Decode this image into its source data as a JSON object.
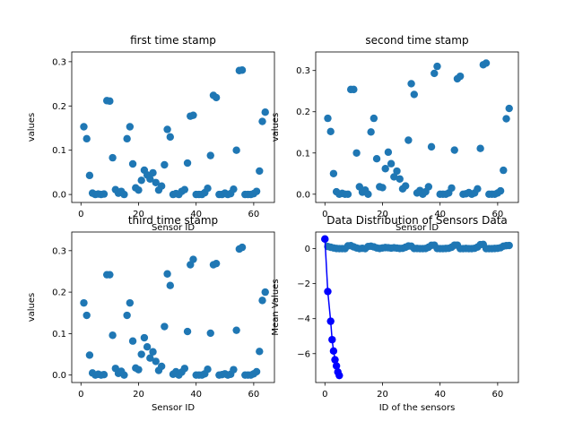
{
  "chart_data": [
    {
      "type": "scatter",
      "title": "first time stamp",
      "xlabel": "Sensor ID",
      "ylabel": "values",
      "xlim": [
        -3.2,
        67.2
      ],
      "ylim": [
        -0.018,
        0.322
      ],
      "xticks": [
        0,
        20,
        40,
        60
      ],
      "yticks": [
        0.0,
        0.1,
        0.2,
        0.3
      ],
      "grid": false,
      "color": "#1f77b4",
      "x": [
        1,
        2,
        3,
        4,
        5,
        6,
        7,
        8,
        9,
        10,
        11,
        12,
        13,
        14,
        15,
        16,
        17,
        18,
        19,
        20,
        21,
        22,
        23,
        24,
        25,
        26,
        27,
        28,
        29,
        30,
        31,
        32,
        33,
        34,
        35,
        36,
        37,
        38,
        39,
        40,
        41,
        42,
        43,
        44,
        45,
        46,
        47,
        48,
        49,
        50,
        51,
        52,
        53,
        54,
        55,
        56,
        57,
        58,
        59,
        60,
        61,
        62,
        63,
        64
      ],
      "y": [
        0.153,
        0.126,
        0.043,
        0.003,
        0.0,
        0.001,
        0.0,
        0.001,
        0.212,
        0.211,
        0.083,
        0.011,
        0.003,
        0.007,
        0.0,
        0.126,
        0.153,
        0.069,
        0.015,
        0.01,
        0.032,
        0.055,
        0.044,
        0.035,
        0.049,
        0.027,
        0.01,
        0.019,
        0.067,
        0.147,
        0.13,
        0.0,
        0.002,
        0.0,
        0.007,
        0.011,
        0.071,
        0.177,
        0.179,
        0.0,
        0.0,
        0.0,
        0.004,
        0.014,
        0.088,
        0.224,
        0.219,
        0.0,
        0.0,
        0.003,
        0.0,
        0.002,
        0.012,
        0.1,
        0.28,
        0.281,
        0.0,
        0.0,
        0.0,
        0.002,
        0.007,
        0.053,
        0.165,
        0.186
      ]
    },
    {
      "type": "scatter",
      "title": "second time stamp",
      "xlabel": "Sensor ID",
      "ylabel": "values",
      "xlim": [
        -3.2,
        67.2
      ],
      "ylim": [
        -0.02,
        0.345
      ],
      "xticks": [
        0,
        20,
        40,
        60
      ],
      "yticks": [
        0.0,
        0.1,
        0.2,
        0.3
      ],
      "grid": false,
      "color": "#1f77b4",
      "x": [
        1,
        2,
        3,
        4,
        5,
        6,
        7,
        8,
        9,
        10,
        11,
        12,
        13,
        14,
        15,
        16,
        17,
        18,
        19,
        20,
        21,
        22,
        23,
        24,
        25,
        26,
        27,
        28,
        29,
        30,
        31,
        32,
        33,
        34,
        35,
        36,
        37,
        38,
        39,
        40,
        41,
        42,
        43,
        44,
        45,
        46,
        47,
        48,
        49,
        50,
        51,
        52,
        53,
        54,
        55,
        56,
        57,
        58,
        59,
        60,
        61,
        62,
        63,
        64
      ],
      "y": [
        0.184,
        0.152,
        0.05,
        0.006,
        0.0,
        0.002,
        0.0,
        0.0,
        0.254,
        0.254,
        0.1,
        0.018,
        0.005,
        0.01,
        0.0,
        0.151,
        0.184,
        0.086,
        0.018,
        0.016,
        0.062,
        0.102,
        0.074,
        0.042,
        0.056,
        0.037,
        0.013,
        0.02,
        0.131,
        0.268,
        0.242,
        0.003,
        0.009,
        0.0,
        0.006,
        0.018,
        0.115,
        0.293,
        0.31,
        0.0,
        0.0,
        0.0,
        0.003,
        0.015,
        0.107,
        0.28,
        0.286,
        0.0,
        0.001,
        0.004,
        0.0,
        0.003,
        0.013,
        0.111,
        0.314,
        0.318,
        0.0,
        0.0,
        0.0,
        0.003,
        0.008,
        0.058,
        0.183,
        0.208
      ]
    },
    {
      "type": "scatter",
      "title": "third time stamp",
      "xlabel": "Sensor ID",
      "ylabel": "values",
      "xlim": [
        -3.2,
        67.2
      ],
      "ylim": [
        -0.018,
        0.345
      ],
      "xticks": [
        0,
        20,
        40,
        60
      ],
      "yticks": [
        0.0,
        0.1,
        0.2,
        0.3
      ],
      "grid": false,
      "color": "#1f77b4",
      "x": [
        1,
        2,
        3,
        4,
        5,
        6,
        7,
        8,
        9,
        10,
        11,
        12,
        13,
        14,
        15,
        16,
        17,
        18,
        19,
        20,
        21,
        22,
        23,
        24,
        25,
        26,
        27,
        28,
        29,
        30,
        31,
        32,
        33,
        34,
        35,
        36,
        37,
        38,
        39,
        40,
        41,
        42,
        43,
        44,
        45,
        46,
        47,
        48,
        49,
        50,
        51,
        52,
        53,
        54,
        55,
        56,
        57,
        58,
        59,
        60,
        61,
        62,
        63,
        64
      ],
      "y": [
        0.174,
        0.144,
        0.048,
        0.005,
        0.0,
        0.002,
        0.0,
        0.001,
        0.242,
        0.242,
        0.096,
        0.016,
        0.004,
        0.009,
        0.0,
        0.144,
        0.174,
        0.082,
        0.017,
        0.013,
        0.05,
        0.09,
        0.068,
        0.041,
        0.056,
        0.033,
        0.011,
        0.021,
        0.117,
        0.244,
        0.216,
        0.002,
        0.008,
        0.0,
        0.007,
        0.016,
        0.105,
        0.266,
        0.279,
        0.0,
        0.0,
        0.0,
        0.003,
        0.014,
        0.101,
        0.266,
        0.269,
        0.0,
        0.001,
        0.003,
        0.0,
        0.002,
        0.013,
        0.108,
        0.304,
        0.308,
        0.0,
        0.0,
        0.0,
        0.003,
        0.008,
        0.057,
        0.18,
        0.2
      ]
    },
    {
      "type": "line",
      "title": "Data Distribution of Sensors Data",
      "xlabel": "ID of the sensors",
      "ylabel": "Mean Values",
      "xlim": [
        -3.2,
        67.2
      ],
      "ylim": [
        -7.65,
        0.95
      ],
      "xticks": [
        0,
        20,
        40,
        60
      ],
      "yticks": [
        0,
        -2,
        -4,
        -6
      ],
      "grid": false,
      "series": [
        {
          "color": "#1f77b4",
          "marker": "o",
          "x": [
            0,
            1,
            2,
            3,
            4,
            5,
            6,
            7,
            8,
            9,
            10,
            11,
            12,
            13,
            14,
            15,
            16,
            17,
            18,
            19,
            20,
            21,
            22,
            23,
            24,
            25,
            26,
            27,
            28,
            29,
            30,
            31,
            32,
            33,
            34,
            35,
            36,
            37,
            38,
            39,
            40,
            41,
            42,
            43,
            44,
            45,
            46,
            47,
            48,
            49,
            50,
            51,
            52,
            53,
            54,
            55,
            56,
            57,
            58,
            59,
            60,
            61,
            62,
            63,
            64
          ],
          "y": [
            0.55,
            0.12,
            0.08,
            0.04,
            0.01,
            0.0,
            0.0,
            0.0,
            0.16,
            0.17,
            0.1,
            0.04,
            0.0,
            0.02,
            0.0,
            0.12,
            0.14,
            0.1,
            0.04,
            0.01,
            0.04,
            0.06,
            0.05,
            0.03,
            0.05,
            0.03,
            0.01,
            0.02,
            0.08,
            0.15,
            0.14,
            0.01,
            0.01,
            0.0,
            0.0,
            0.01,
            0.08,
            0.19,
            0.2,
            0.01,
            0.0,
            0.0,
            0.01,
            0.02,
            0.08,
            0.2,
            0.2,
            0.0,
            0.0,
            0.01,
            0.0,
            0.0,
            0.02,
            0.09,
            0.23,
            0.24,
            0.0,
            0.0,
            0.0,
            0.01,
            0.02,
            0.05,
            0.14,
            0.17,
            0.18
          ]
        },
        {
          "color": "#0000ff",
          "marker": "o",
          "x": [
            0,
            1,
            2,
            2.5,
            3,
            3.5,
            4,
            4.5,
            5
          ],
          "y": [
            0.55,
            -2.45,
            -4.15,
            -5.2,
            -5.85,
            -6.35,
            -6.7,
            -7.05,
            -7.25
          ]
        }
      ]
    }
  ]
}
